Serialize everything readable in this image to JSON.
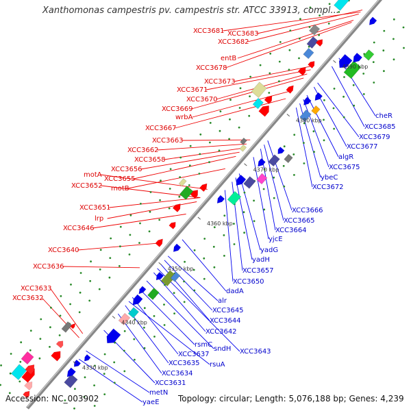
{
  "title": "Xanthomonas campestris pv. campestris str. ATCC 33913, compl...",
  "footer": {
    "accession": "Accession: NC_003902",
    "info": "Topology: circular; Length: 5,076,188 bp; Genes: 4,239"
  },
  "colors": {
    "backbone": "#888888",
    "forward_label": "#dd0000",
    "reverse_label": "#0000cc",
    "forward_feature": "#ff0000",
    "reverse_feature": "#0000ee"
  },
  "ticks": [
    "4330 kbp",
    "4340 kbp",
    "4350 kbp",
    "4360 kbp",
    "4370 kbp",
    "4380 kbp",
    "4390 kbp"
  ],
  "forward_labels": [
    "XCC3681",
    "XCC3683",
    "XCC3682",
    "entB",
    "XCC3678",
    "XCC3673",
    "XCC3671",
    "XCC3670",
    "XCC3669",
    "wrbA",
    "XCC3667",
    "XCC3663",
    "XCC3662",
    "XCC3658",
    "XCC3656",
    "motA",
    "XCC3655",
    "XCC3652",
    "motB",
    "XCC3651",
    "lrp",
    "XCC3646",
    "XCC3640",
    "XCC3636",
    "XCC3633",
    "XCC3632"
  ],
  "reverse_labels": [
    "cheR",
    "XCC3685",
    "XCC3679",
    "XCC3677",
    "algR",
    "XCC3675",
    "ybeC",
    "XCC3672",
    "XCC3666",
    "XCC3665",
    "XCC3664",
    "yjcE",
    "yadG",
    "yadH",
    "XCC3657",
    "XCC3650",
    "dadA",
    "alr",
    "XCC3645",
    "XCC3644",
    "XCC3642",
    "XCC3643",
    "sndH",
    "rsmC",
    "XCC3637",
    "rsuA",
    "XCC3635",
    "XCC3634",
    "XCC3631",
    "metN",
    "yaeE"
  ]
}
